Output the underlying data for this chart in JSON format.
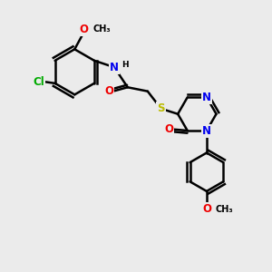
{
  "bg_color": "#ebebeb",
  "bond_color": "#000000",
  "bond_width": 1.8,
  "dbo": 0.07,
  "atom_colors": {
    "N": "#0000ee",
    "O": "#ee0000",
    "S": "#bbbb00",
    "Cl": "#00aa00",
    "C": "#000000",
    "H": "#000000"
  },
  "font_size": 8.5,
  "fig_size": [
    3.0,
    3.0
  ],
  "dpi": 100
}
